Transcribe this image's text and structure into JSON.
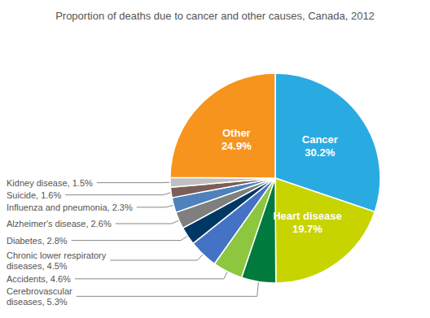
{
  "chart_data": {
    "type": "pie",
    "title": "Proportion of deaths due to cancer and other causes, Canada, 2012",
    "categories": [
      "Cancer\n30.2%",
      "Heart disease\n19.7%",
      "Cerebrovascular\ndiseases, 5.3%",
      "Accidents, 4.6%",
      "Chronic lower respiratory\ndiseases, 4.5%",
      "Diabetes, 2.8%",
      "Alzheimer's disease, 2.6%",
      "Influenza and pneumonia, 2.3%",
      "Suicide, 1.6%",
      "Kidney disease, 1.5%",
      "Other\n24.9%"
    ],
    "values": [
      30.2,
      19.7,
      5.3,
      4.6,
      4.5,
      2.8,
      2.6,
      2.3,
      1.6,
      1.5,
      24.9
    ],
    "colors": [
      "#29ABE2",
      "#C8D400",
      "#007A3D",
      "#8DC63F",
      "#4472C4",
      "#003865",
      "#7F7F7F",
      "#4F81BD",
      "#7B5E57",
      "#C0C0C0",
      "#F7941D"
    ]
  }
}
